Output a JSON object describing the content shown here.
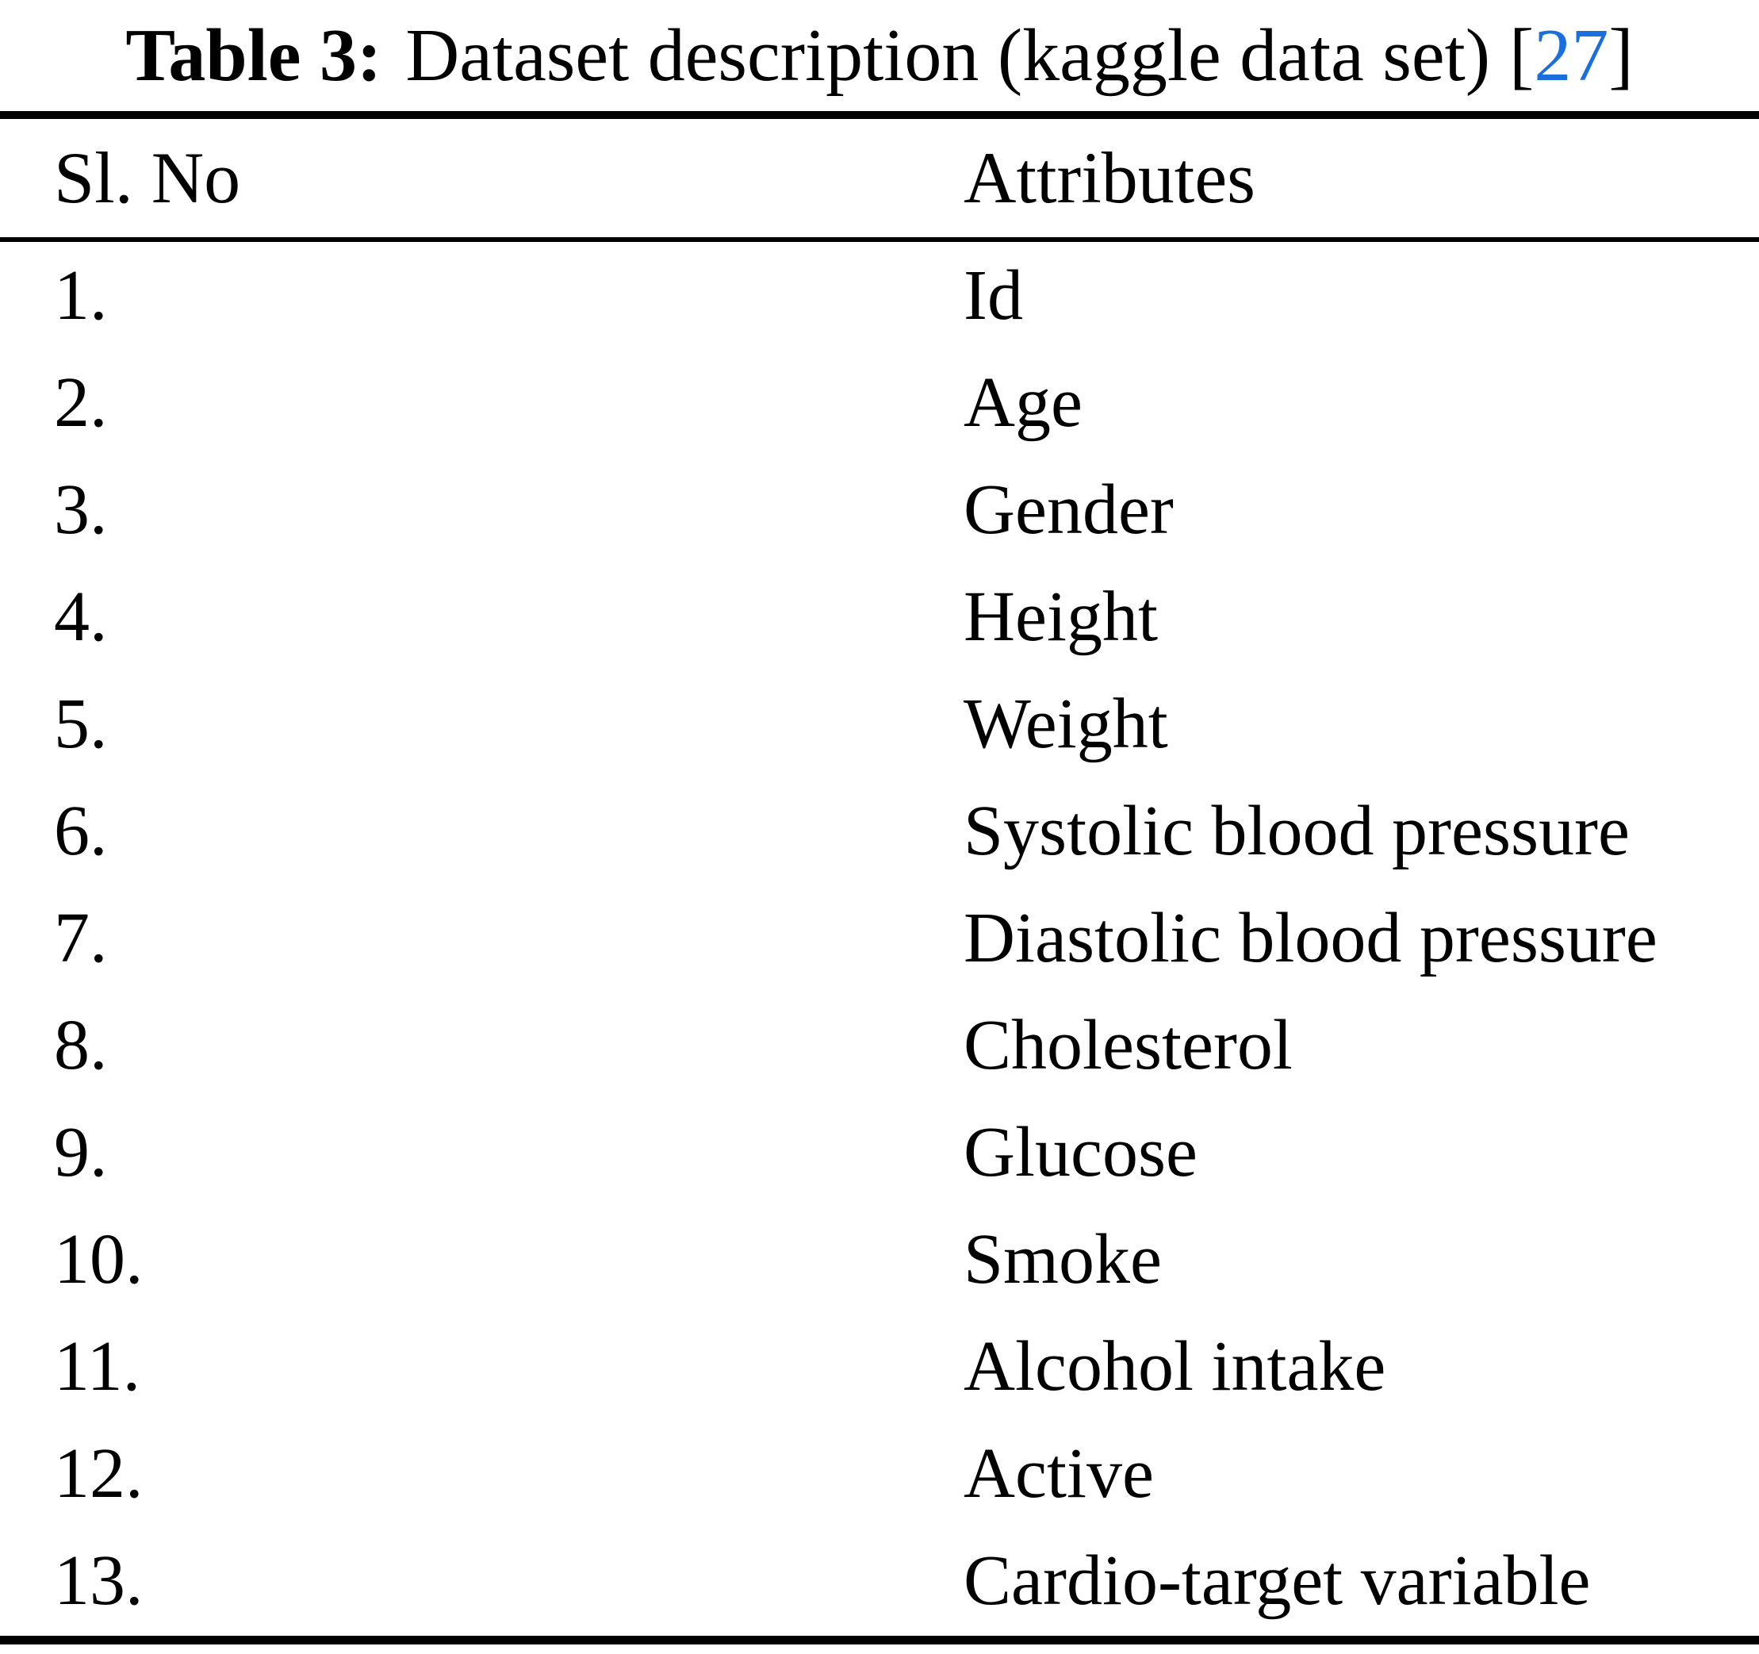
{
  "title": {
    "label": "Table 3:",
    "text": "Dataset description (kaggle data set)",
    "citation_open": "[",
    "citation_number": "27",
    "citation_close": "]"
  },
  "colors": {
    "citation_blue": "#1B6FDC",
    "text_black": "#000000"
  },
  "table": {
    "headers": [
      "Sl. No",
      "Attributes"
    ],
    "rows": [
      {
        "no": "1.",
        "attribute": "Id"
      },
      {
        "no": "2.",
        "attribute": "Age"
      },
      {
        "no": "3.",
        "attribute": "Gender"
      },
      {
        "no": "4.",
        "attribute": "Height"
      },
      {
        "no": "5.",
        "attribute": "Weight"
      },
      {
        "no": "6.",
        "attribute": "Systolic blood pressure"
      },
      {
        "no": "7.",
        "attribute": "Diastolic blood pressure"
      },
      {
        "no": "8.",
        "attribute": "Cholesterol"
      },
      {
        "no": "9.",
        "attribute": "Glucose"
      },
      {
        "no": "10.",
        "attribute": "Smoke"
      },
      {
        "no": "11.",
        "attribute": "Alcohol intake"
      },
      {
        "no": "12.",
        "attribute": "Active"
      },
      {
        "no": "13.",
        "attribute": "Cardio-target variable"
      }
    ]
  }
}
